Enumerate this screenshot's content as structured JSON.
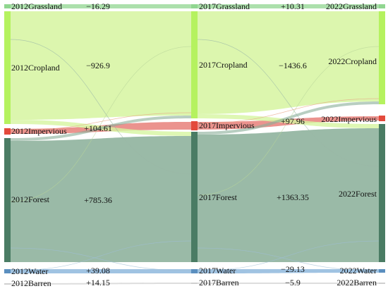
{
  "years": [
    "2012",
    "2017",
    "2022"
  ],
  "colors": {
    "Grassland": "#90d690",
    "Cropland": "#b5f25f",
    "Impervious": "#e34a3c",
    "Forest": "#4a7c64",
    "Water": "#5b8fbf",
    "Barren": "#cfcfcf",
    "flow_crop": "#d6f5a0",
    "flow_forest": "#88ae98",
    "flow_imp": "#e8807a",
    "flow_water": "#8fb8dd"
  },
  "nodes": {
    "col2012": [
      {
        "cls": "Grassland",
        "label": "2012Grassland"
      },
      {
        "cls": "Cropland",
        "label": "2012Cropland"
      },
      {
        "cls": "Impervious",
        "label": "2012Impervious"
      },
      {
        "cls": "Forest",
        "label": "2012Forest"
      },
      {
        "cls": "Water",
        "label": "2012Water"
      },
      {
        "cls": "Barren",
        "label": "2012Barren"
      }
    ],
    "col2017": [
      {
        "cls": "Grassland",
        "label": "2017Grassland"
      },
      {
        "cls": "Cropland",
        "label": "2017Cropland"
      },
      {
        "cls": "Impervious",
        "label": "2017Impervious"
      },
      {
        "cls": "Forest",
        "label": "2017Forest"
      },
      {
        "cls": "Water",
        "label": "2017Water"
      },
      {
        "cls": "Barren",
        "label": "2017Barren"
      }
    ],
    "col2022": [
      {
        "cls": "Grassland",
        "label": "2022Grassland"
      },
      {
        "cls": "Cropland",
        "label": "2022Cropland"
      },
      {
        "cls": "Impervious",
        "label": "2022Impervious"
      },
      {
        "cls": "Forest",
        "label": "2022Forest"
      },
      {
        "cls": "Water",
        "label": "2022Water"
      },
      {
        "cls": "Barren",
        "label": "2022Barren"
      }
    ]
  },
  "changes": {
    "p1": [
      {
        "cls": "Grassland",
        "value": "−16.29"
      },
      {
        "cls": "Cropland",
        "value": "−926.9"
      },
      {
        "cls": "Impervious",
        "value": "+104.61"
      },
      {
        "cls": "Forest",
        "value": "+785.36"
      },
      {
        "cls": "Water",
        "value": "+39.08"
      },
      {
        "cls": "Barren",
        "value": "+14.15"
      }
    ],
    "p2": [
      {
        "cls": "Grassland",
        "value": "+10.31"
      },
      {
        "cls": "Cropland",
        "value": "−1436.6"
      },
      {
        "cls": "Impervious",
        "value": "+97.96"
      },
      {
        "cls": "Forest",
        "value": "+1363.35"
      },
      {
        "cls": "Water",
        "value": "−29.13"
      },
      {
        "cls": "Barren",
        "value": "−5.9"
      }
    ]
  }
}
